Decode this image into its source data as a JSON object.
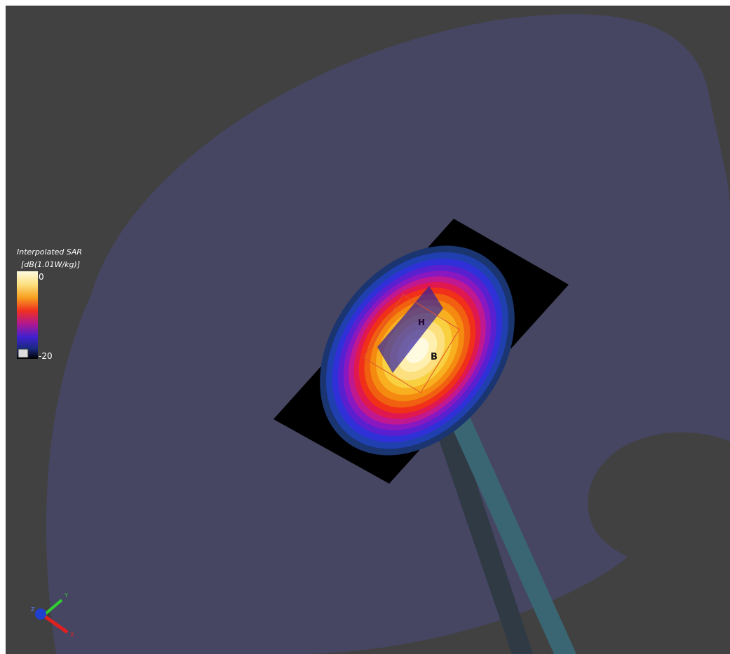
{
  "legend": {
    "title": "Interpolated SAR",
    "unit": "[dB(1.01W/kg)]",
    "max_label": "0",
    "min_label": "-20"
  },
  "markers": [
    "H",
    "B"
  ],
  "axes": [
    "Y",
    "Z",
    "X"
  ]
}
